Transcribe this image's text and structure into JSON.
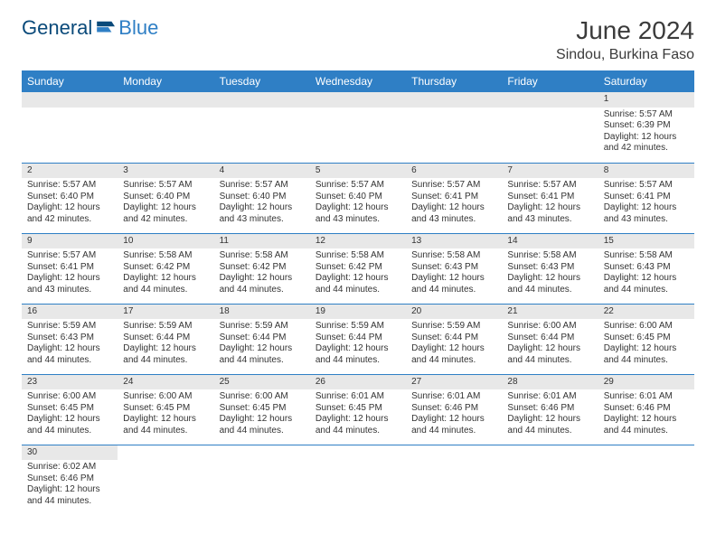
{
  "brand": {
    "part1": "General",
    "part2": "Blue"
  },
  "header": {
    "month_title": "June 2024",
    "location": "Sindou, Burkina Faso"
  },
  "colors": {
    "header_bg": "#2f7fc5",
    "header_text": "#ffffff",
    "daynum_bg": "#e8e8e8",
    "divider": "#2f7fc5"
  },
  "weekdays": [
    "Sunday",
    "Monday",
    "Tuesday",
    "Wednesday",
    "Thursday",
    "Friday",
    "Saturday"
  ],
  "weeks": [
    [
      null,
      null,
      null,
      null,
      null,
      null,
      {
        "n": "1",
        "sr": "Sunrise: 5:57 AM",
        "ss": "Sunset: 6:39 PM",
        "dl1": "Daylight: 12 hours",
        "dl2": "and 42 minutes."
      }
    ],
    [
      {
        "n": "2",
        "sr": "Sunrise: 5:57 AM",
        "ss": "Sunset: 6:40 PM",
        "dl1": "Daylight: 12 hours",
        "dl2": "and 42 minutes."
      },
      {
        "n": "3",
        "sr": "Sunrise: 5:57 AM",
        "ss": "Sunset: 6:40 PM",
        "dl1": "Daylight: 12 hours",
        "dl2": "and 42 minutes."
      },
      {
        "n": "4",
        "sr": "Sunrise: 5:57 AM",
        "ss": "Sunset: 6:40 PM",
        "dl1": "Daylight: 12 hours",
        "dl2": "and 43 minutes."
      },
      {
        "n": "5",
        "sr": "Sunrise: 5:57 AM",
        "ss": "Sunset: 6:40 PM",
        "dl1": "Daylight: 12 hours",
        "dl2": "and 43 minutes."
      },
      {
        "n": "6",
        "sr": "Sunrise: 5:57 AM",
        "ss": "Sunset: 6:41 PM",
        "dl1": "Daylight: 12 hours",
        "dl2": "and 43 minutes."
      },
      {
        "n": "7",
        "sr": "Sunrise: 5:57 AM",
        "ss": "Sunset: 6:41 PM",
        "dl1": "Daylight: 12 hours",
        "dl2": "and 43 minutes."
      },
      {
        "n": "8",
        "sr": "Sunrise: 5:57 AM",
        "ss": "Sunset: 6:41 PM",
        "dl1": "Daylight: 12 hours",
        "dl2": "and 43 minutes."
      }
    ],
    [
      {
        "n": "9",
        "sr": "Sunrise: 5:57 AM",
        "ss": "Sunset: 6:41 PM",
        "dl1": "Daylight: 12 hours",
        "dl2": "and 43 minutes."
      },
      {
        "n": "10",
        "sr": "Sunrise: 5:58 AM",
        "ss": "Sunset: 6:42 PM",
        "dl1": "Daylight: 12 hours",
        "dl2": "and 44 minutes."
      },
      {
        "n": "11",
        "sr": "Sunrise: 5:58 AM",
        "ss": "Sunset: 6:42 PM",
        "dl1": "Daylight: 12 hours",
        "dl2": "and 44 minutes."
      },
      {
        "n": "12",
        "sr": "Sunrise: 5:58 AM",
        "ss": "Sunset: 6:42 PM",
        "dl1": "Daylight: 12 hours",
        "dl2": "and 44 minutes."
      },
      {
        "n": "13",
        "sr": "Sunrise: 5:58 AM",
        "ss": "Sunset: 6:43 PM",
        "dl1": "Daylight: 12 hours",
        "dl2": "and 44 minutes."
      },
      {
        "n": "14",
        "sr": "Sunrise: 5:58 AM",
        "ss": "Sunset: 6:43 PM",
        "dl1": "Daylight: 12 hours",
        "dl2": "and 44 minutes."
      },
      {
        "n": "15",
        "sr": "Sunrise: 5:58 AM",
        "ss": "Sunset: 6:43 PM",
        "dl1": "Daylight: 12 hours",
        "dl2": "and 44 minutes."
      }
    ],
    [
      {
        "n": "16",
        "sr": "Sunrise: 5:59 AM",
        "ss": "Sunset: 6:43 PM",
        "dl1": "Daylight: 12 hours",
        "dl2": "and 44 minutes."
      },
      {
        "n": "17",
        "sr": "Sunrise: 5:59 AM",
        "ss": "Sunset: 6:44 PM",
        "dl1": "Daylight: 12 hours",
        "dl2": "and 44 minutes."
      },
      {
        "n": "18",
        "sr": "Sunrise: 5:59 AM",
        "ss": "Sunset: 6:44 PM",
        "dl1": "Daylight: 12 hours",
        "dl2": "and 44 minutes."
      },
      {
        "n": "19",
        "sr": "Sunrise: 5:59 AM",
        "ss": "Sunset: 6:44 PM",
        "dl1": "Daylight: 12 hours",
        "dl2": "and 44 minutes."
      },
      {
        "n": "20",
        "sr": "Sunrise: 5:59 AM",
        "ss": "Sunset: 6:44 PM",
        "dl1": "Daylight: 12 hours",
        "dl2": "and 44 minutes."
      },
      {
        "n": "21",
        "sr": "Sunrise: 6:00 AM",
        "ss": "Sunset: 6:44 PM",
        "dl1": "Daylight: 12 hours",
        "dl2": "and 44 minutes."
      },
      {
        "n": "22",
        "sr": "Sunrise: 6:00 AM",
        "ss": "Sunset: 6:45 PM",
        "dl1": "Daylight: 12 hours",
        "dl2": "and 44 minutes."
      }
    ],
    [
      {
        "n": "23",
        "sr": "Sunrise: 6:00 AM",
        "ss": "Sunset: 6:45 PM",
        "dl1": "Daylight: 12 hours",
        "dl2": "and 44 minutes."
      },
      {
        "n": "24",
        "sr": "Sunrise: 6:00 AM",
        "ss": "Sunset: 6:45 PM",
        "dl1": "Daylight: 12 hours",
        "dl2": "and 44 minutes."
      },
      {
        "n": "25",
        "sr": "Sunrise: 6:00 AM",
        "ss": "Sunset: 6:45 PM",
        "dl1": "Daylight: 12 hours",
        "dl2": "and 44 minutes."
      },
      {
        "n": "26",
        "sr": "Sunrise: 6:01 AM",
        "ss": "Sunset: 6:45 PM",
        "dl1": "Daylight: 12 hours",
        "dl2": "and 44 minutes."
      },
      {
        "n": "27",
        "sr": "Sunrise: 6:01 AM",
        "ss": "Sunset: 6:46 PM",
        "dl1": "Daylight: 12 hours",
        "dl2": "and 44 minutes."
      },
      {
        "n": "28",
        "sr": "Sunrise: 6:01 AM",
        "ss": "Sunset: 6:46 PM",
        "dl1": "Daylight: 12 hours",
        "dl2": "and 44 minutes."
      },
      {
        "n": "29",
        "sr": "Sunrise: 6:01 AM",
        "ss": "Sunset: 6:46 PM",
        "dl1": "Daylight: 12 hours",
        "dl2": "and 44 minutes."
      }
    ],
    [
      {
        "n": "30",
        "sr": "Sunrise: 6:02 AM",
        "ss": "Sunset: 6:46 PM",
        "dl1": "Daylight: 12 hours",
        "dl2": "and 44 minutes."
      },
      null,
      null,
      null,
      null,
      null,
      null
    ]
  ]
}
